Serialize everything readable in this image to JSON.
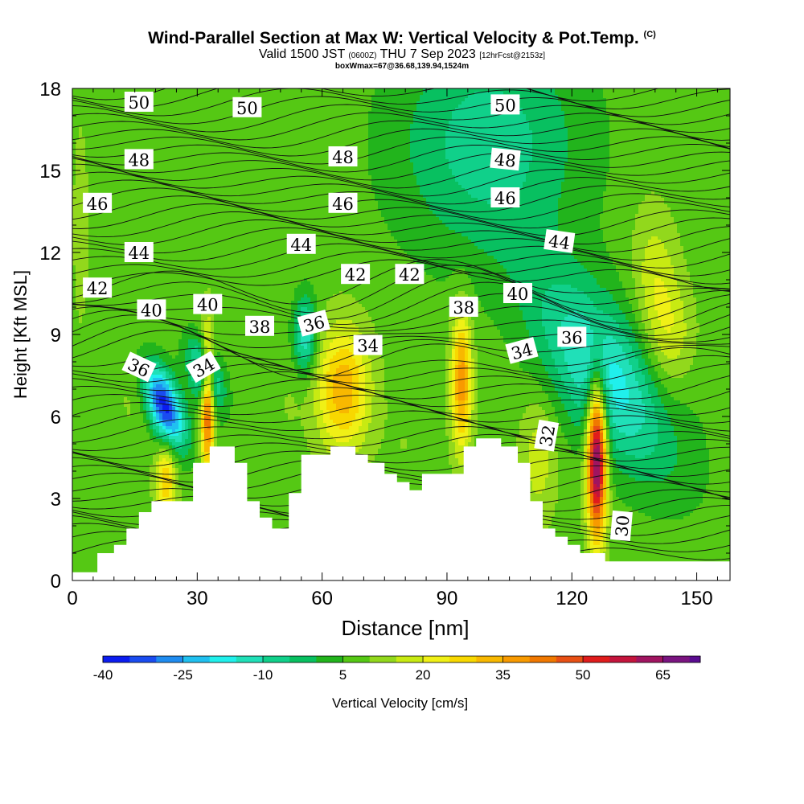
{
  "title": {
    "main": "Wind-Parallel Section at Max W: Vertical Velocity & Pot.Temp.",
    "copyright": "(C)",
    "valid_prefix": "Valid 1500 JST",
    "valid_utc": "(0600Z)",
    "valid_date": "THU 7 Sep 2023",
    "forecast": "[12hrFcst@2153z]",
    "box_info": "boxWmax=67@36.68,139.94,1524m"
  },
  "chart_data": {
    "type": "heatmap",
    "xlabel": "Distance [nm]",
    "ylabel": "Height [Kft MSL]",
    "xlim": [
      0,
      158
    ],
    "ylim": [
      0,
      18
    ],
    "x_ticks": [
      0,
      30,
      60,
      90,
      120,
      150
    ],
    "y_ticks": [
      0,
      3,
      6,
      9,
      12,
      15,
      18
    ],
    "colorbar": {
      "label": "Vertical Velocity [cm/s]",
      "tick_labels": [
        "-40",
        "-25",
        "-10",
        "5",
        "20",
        "35",
        "50",
        "65"
      ],
      "tick_values": [
        -40,
        -25,
        -10,
        5,
        20,
        35,
        50,
        65
      ],
      "min": -40,
      "max": 72,
      "step": 5,
      "colors": [
        "#0b1cf0",
        "#1a4cf0",
        "#1f8cf0",
        "#20c0f0",
        "#20f0ec",
        "#20e0b8",
        "#10d08a",
        "#08c060",
        "#22b41c",
        "#55c814",
        "#92d81c",
        "#c8ea12",
        "#f0f016",
        "#f8d800",
        "#f8b800",
        "#f89a00",
        "#f07800",
        "#e85014",
        "#e01c1c",
        "#c4143c",
        "#a01460",
        "#7a1480",
        "#5a0c90"
      ]
    },
    "terrain": [
      [
        0,
        0.3
      ],
      [
        6,
        0.3
      ],
      [
        6,
        1.0
      ],
      [
        10,
        1.0
      ],
      [
        10,
        1.3
      ],
      [
        13,
        1.3
      ],
      [
        13,
        1.9
      ],
      [
        16,
        1.9
      ],
      [
        16,
        2.5
      ],
      [
        19,
        2.5
      ],
      [
        19,
        2.9
      ],
      [
        22,
        2.9
      ],
      [
        22,
        2.9
      ],
      [
        29,
        2.9
      ],
      [
        29,
        4.3
      ],
      [
        33,
        4.3
      ],
      [
        33,
        4.9
      ],
      [
        39,
        4.9
      ],
      [
        39,
        4.3
      ],
      [
        42,
        4.3
      ],
      [
        42,
        2.9
      ],
      [
        45,
        2.9
      ],
      [
        45,
        2.3
      ],
      [
        48,
        2.3
      ],
      [
        48,
        1.9
      ],
      [
        52,
        1.9
      ],
      [
        52,
        3.2
      ],
      [
        55,
        3.2
      ],
      [
        55,
        4.6
      ],
      [
        62,
        4.6
      ],
      [
        62,
        4.9
      ],
      [
        68,
        4.9
      ],
      [
        68,
        4.6
      ],
      [
        71,
        4.6
      ],
      [
        71,
        4.3
      ],
      [
        75,
        4.3
      ],
      [
        75,
        3.9
      ],
      [
        78,
        3.9
      ],
      [
        78,
        3.6
      ],
      [
        81,
        3.6
      ],
      [
        81,
        3.3
      ],
      [
        84,
        3.3
      ],
      [
        84,
        3.9
      ],
      [
        94,
        3.9
      ],
      [
        94,
        4.9
      ],
      [
        97,
        4.9
      ],
      [
        97,
        5.2
      ],
      [
        103,
        5.2
      ],
      [
        103,
        4.9
      ],
      [
        107,
        4.9
      ],
      [
        107,
        4.3
      ],
      [
        110,
        4.3
      ],
      [
        110,
        2.9
      ],
      [
        113,
        2.9
      ],
      [
        113,
        1.9
      ],
      [
        116,
        1.9
      ],
      [
        116,
        1.6
      ],
      [
        119,
        1.6
      ],
      [
        119,
        1.3
      ],
      [
        122,
        1.3
      ],
      [
        122,
        1.0
      ],
      [
        128,
        1.0
      ],
      [
        128,
        0.7
      ],
      [
        158,
        0.7
      ]
    ],
    "vertical_velocity_features": [
      {
        "x": 22,
        "y": 6.4,
        "sx": 3.5,
        "sy": 0.9,
        "tilt": -0.5,
        "value": -38
      },
      {
        "x": 32,
        "y": 7.5,
        "sx": 3.0,
        "sy": 0.8,
        "tilt": -0.4,
        "value": -20
      },
      {
        "x": 32.5,
        "y": 6.5,
        "sx": 1.1,
        "sy": 1.7,
        "tilt": 0,
        "value": 50
      },
      {
        "x": 22.5,
        "y": 3.7,
        "sx": 1.7,
        "sy": 1.0,
        "tilt": 0,
        "value": 30
      },
      {
        "x": 16,
        "y": 7.0,
        "sx": 3.5,
        "sy": 1.3,
        "tilt": 0,
        "value": 12
      },
      {
        "x": 65,
        "y": 7.0,
        "sx": 4.5,
        "sy": 1.6,
        "tilt": 0,
        "value": 34
      },
      {
        "x": 93.5,
        "y": 7.3,
        "sx": 1.7,
        "sy": 1.8,
        "tilt": 0,
        "value": 38
      },
      {
        "x": 126,
        "y": 4.5,
        "sx": 1.6,
        "sy": 2.0,
        "tilt": 0,
        "value": 72
      },
      {
        "x": 112,
        "y": 4.5,
        "sx": 3.0,
        "sy": 1.6,
        "tilt": 0,
        "value": 18
      },
      {
        "x": 128,
        "y": 7.5,
        "sx": 12.0,
        "sy": 2.0,
        "tilt": -0.4,
        "value": -18
      },
      {
        "x": 141,
        "y": 10.0,
        "sx": 4.0,
        "sy": 2.2,
        "tilt": -0.5,
        "value": 22
      },
      {
        "x": 146,
        "y": 9.0,
        "sx": 3.0,
        "sy": 1.2,
        "tilt": 0,
        "value": 12
      },
      {
        "x": 100,
        "y": 16.0,
        "sx": 16.0,
        "sy": 3.0,
        "tilt": 0,
        "value": -8
      },
      {
        "x": 56,
        "y": 9.0,
        "sx": 2.0,
        "sy": 1.0,
        "tilt": 0,
        "value": -15
      },
      {
        "x": 2,
        "y": 13.0,
        "sx": 1.5,
        "sy": 3.0,
        "tilt": 0,
        "value": 12
      },
      {
        "x": 80,
        "y": 5.0,
        "sx": 3.5,
        "sy": 1.0,
        "tilt": 0,
        "value": 10
      },
      {
        "x": 52,
        "y": 6.5,
        "sx": 2.0,
        "sy": 1.0,
        "tilt": 0,
        "value": 10
      }
    ],
    "potential_temperature_labels": [
      {
        "text": "50",
        "x": 16,
        "y": 17.5,
        "angle": 0
      },
      {
        "text": "50",
        "x": 42,
        "y": 17.3,
        "angle": 0
      },
      {
        "text": "50",
        "x": 104,
        "y": 17.4,
        "angle": 0
      },
      {
        "text": "48",
        "x": 16,
        "y": 15.4,
        "angle": 0
      },
      {
        "text": "48",
        "x": 65,
        "y": 15.5,
        "angle": 0
      },
      {
        "text": "48",
        "x": 104,
        "y": 15.4,
        "angle": 6
      },
      {
        "text": "46",
        "x": 6,
        "y": 13.8,
        "angle": 0
      },
      {
        "text": "46",
        "x": 65,
        "y": 13.8,
        "angle": 0
      },
      {
        "text": "46",
        "x": 104,
        "y": 14.0,
        "angle": 0
      },
      {
        "text": "44",
        "x": 16,
        "y": 12.0,
        "angle": 0
      },
      {
        "text": "44",
        "x": 55,
        "y": 12.3,
        "angle": 0
      },
      {
        "text": "44",
        "x": 117,
        "y": 12.4,
        "angle": 8
      },
      {
        "text": "42",
        "x": 6,
        "y": 10.7,
        "angle": 0
      },
      {
        "text": "42",
        "x": 68,
        "y": 11.2,
        "angle": 0
      },
      {
        "text": "42",
        "x": 81,
        "y": 11.2,
        "angle": 0
      },
      {
        "text": "40",
        "x": 19,
        "y": 9.9,
        "angle": 0
      },
      {
        "text": "40",
        "x": 32.5,
        "y": 10.1,
        "angle": 0
      },
      {
        "text": "40",
        "x": 107,
        "y": 10.5,
        "angle": 0
      },
      {
        "text": "38",
        "x": 45,
        "y": 9.3,
        "angle": 0
      },
      {
        "text": "38",
        "x": 94,
        "y": 10.0,
        "angle": 0
      },
      {
        "text": "36",
        "x": 58,
        "y": 9.4,
        "angle": -15
      },
      {
        "text": "36",
        "x": 120,
        "y": 8.9,
        "angle": 0
      },
      {
        "text": "36",
        "x": 16,
        "y": 7.8,
        "angle": 25
      },
      {
        "text": "34",
        "x": 31.5,
        "y": 7.8,
        "angle": -30
      },
      {
        "text": "34",
        "x": 71,
        "y": 8.6,
        "angle": 0
      },
      {
        "text": "34",
        "x": 108,
        "y": 8.4,
        "angle": -15
      },
      {
        "text": "32",
        "x": 114,
        "y": 5.3,
        "angle": -80
      },
      {
        "text": "30",
        "x": 132,
        "y": 2.0,
        "angle": -85
      }
    ]
  }
}
